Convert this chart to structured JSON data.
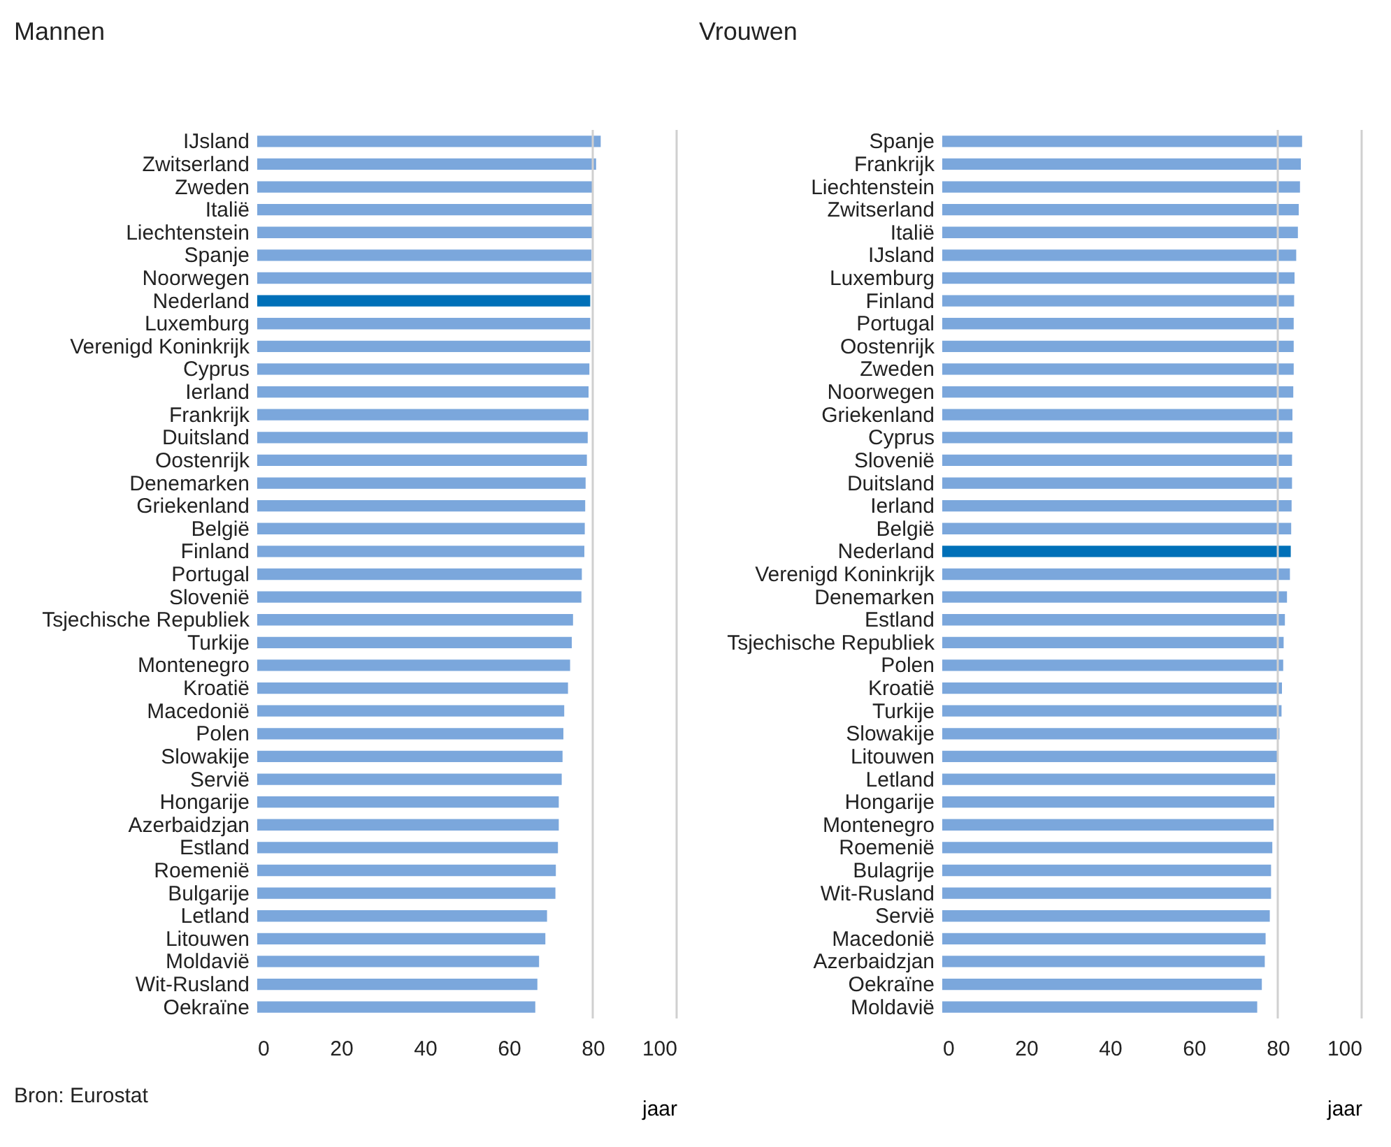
{
  "chart_data": [
    {
      "type": "bar",
      "orientation": "horizontal",
      "title": "Mannen",
      "xlabel": "jaar",
      "xlim": [
        0,
        100
      ],
      "xticks": [
        0,
        20,
        40,
        60,
        80,
        100
      ],
      "grid": false,
      "categories": [
        "IJsland",
        "Zwitserland",
        "Zweden",
        "Italië",
        "Liechtenstein",
        "Spanje",
        "Noorwegen",
        "Nederland",
        "Luxemburg",
        "Verenigd Koninkrijk",
        "Cyprus",
        "Ierland",
        "Frankrijk",
        "Duitsland",
        "Oostenrijk",
        "Denemarken",
        "Griekenland",
        "België",
        "Finland",
        "Portugal",
        "Slovenië",
        "Tsjechische Republiek",
        "Turkije",
        "Montenegro",
        "Kroatië",
        "Macedonië",
        "Polen",
        "Slowakije",
        "Servië",
        "Hongarije",
        "Azerbaidzjan",
        "Estland",
        "Roemenië",
        "Bulgarije",
        "Letland",
        "Litouwen",
        "Moldavië",
        "Wit-Rusland",
        "Oekraïne"
      ],
      "values": [
        81.9,
        80.8,
        80.1,
        80.1,
        80.0,
        79.7,
        79.7,
        79.4,
        79.4,
        79.4,
        79.2,
        79.0,
        79.0,
        78.8,
        78.6,
        78.3,
        78.2,
        78.1,
        78.0,
        77.4,
        77.3,
        75.3,
        75.0,
        74.6,
        74.1,
        73.2,
        73.0,
        72.8,
        72.6,
        71.9,
        71.9,
        71.7,
        71.2,
        71.1,
        69.1,
        68.7,
        67.2,
        66.8,
        66.3
      ],
      "colors": [
        "#7ba7dc",
        "#7ba7dc",
        "#7ba7dc",
        "#7ba7dc",
        "#7ba7dc",
        "#7ba7dc",
        "#7ba7dc",
        "#0070b8",
        "#7ba7dc",
        "#7ba7dc",
        "#7ba7dc",
        "#7ba7dc",
        "#7ba7dc",
        "#7ba7dc",
        "#7ba7dc",
        "#7ba7dc",
        "#7ba7dc",
        "#7ba7dc",
        "#7ba7dc",
        "#7ba7dc",
        "#7ba7dc",
        "#7ba7dc",
        "#7ba7dc",
        "#7ba7dc",
        "#7ba7dc",
        "#7ba7dc",
        "#7ba7dc",
        "#7ba7dc",
        "#7ba7dc",
        "#7ba7dc",
        "#7ba7dc",
        "#7ba7dc",
        "#7ba7dc",
        "#7ba7dc",
        "#7ba7dc",
        "#7ba7dc",
        "#7ba7dc",
        "#7ba7dc",
        "#7ba7dc"
      ],
      "ref_lines": [
        {
          "axis": "x",
          "value": 80,
          "label": null,
          "color": "#d0d0d0"
        }
      ],
      "annotations": [
        "Bron: Eurostat"
      ]
    },
    {
      "type": "bar",
      "orientation": "horizontal",
      "title": "Vrouwen",
      "xlabel": "jaar",
      "xlim": [
        0,
        100
      ],
      "xticks": [
        0,
        20,
        40,
        60,
        80,
        100
      ],
      "grid": false,
      "categories": [
        "Spanje",
        "Frankrijk",
        "Liechtenstein",
        "Zwitserland",
        "Italië",
        "IJsland",
        "Luxemburg",
        "Finland",
        "Portugal",
        "Oostenrijk",
        "Zweden",
        "Noorwegen",
        "Griekenland",
        "Cyprus",
        "Slovenië",
        "Duitsland",
        "Ierland",
        "België",
        "Nederland",
        "Verenigd Koninkrijk",
        "Denemarken",
        "Estland",
        "Tsjechische Republiek",
        "Polen",
        "Kroatië",
        "Turkije",
        "Slowakije",
        "Litouwen",
        "Letland",
        "Hongarije",
        "Montenegro",
        "Roemenië",
        "Bulagrije",
        "Wit-Rusland",
        "Servië",
        "Macedonië",
        "Azerbaidzjan",
        "Oekraïne",
        "Moldavië"
      ],
      "values": [
        85.8,
        85.5,
        85.3,
        85.0,
        84.8,
        84.4,
        84.0,
        83.9,
        83.8,
        83.8,
        83.8,
        83.7,
        83.5,
        83.5,
        83.4,
        83.4,
        83.3,
        83.2,
        83.1,
        82.9,
        82.2,
        81.7,
        81.4,
        81.3,
        81.0,
        80.9,
        80.4,
        80.1,
        79.4,
        79.2,
        79.0,
        78.7,
        78.4,
        78.4,
        78.1,
        77.1,
        76.9,
        76.2,
        75.1
      ],
      "colors": [
        "#7ba7dc",
        "#7ba7dc",
        "#7ba7dc",
        "#7ba7dc",
        "#7ba7dc",
        "#7ba7dc",
        "#7ba7dc",
        "#7ba7dc",
        "#7ba7dc",
        "#7ba7dc",
        "#7ba7dc",
        "#7ba7dc",
        "#7ba7dc",
        "#7ba7dc",
        "#7ba7dc",
        "#7ba7dc",
        "#7ba7dc",
        "#7ba7dc",
        "#0070b8",
        "#7ba7dc",
        "#7ba7dc",
        "#7ba7dc",
        "#7ba7dc",
        "#7ba7dc",
        "#7ba7dc",
        "#7ba7dc",
        "#7ba7dc",
        "#7ba7dc",
        "#7ba7dc",
        "#7ba7dc",
        "#7ba7dc",
        "#7ba7dc",
        "#7ba7dc",
        "#7ba7dc",
        "#7ba7dc",
        "#7ba7dc",
        "#7ba7dc",
        "#7ba7dc",
        "#7ba7dc"
      ],
      "ref_lines": [
        {
          "axis": "x",
          "value": 80,
          "label": null,
          "color": "#d0d0d0"
        }
      ]
    }
  ]
}
